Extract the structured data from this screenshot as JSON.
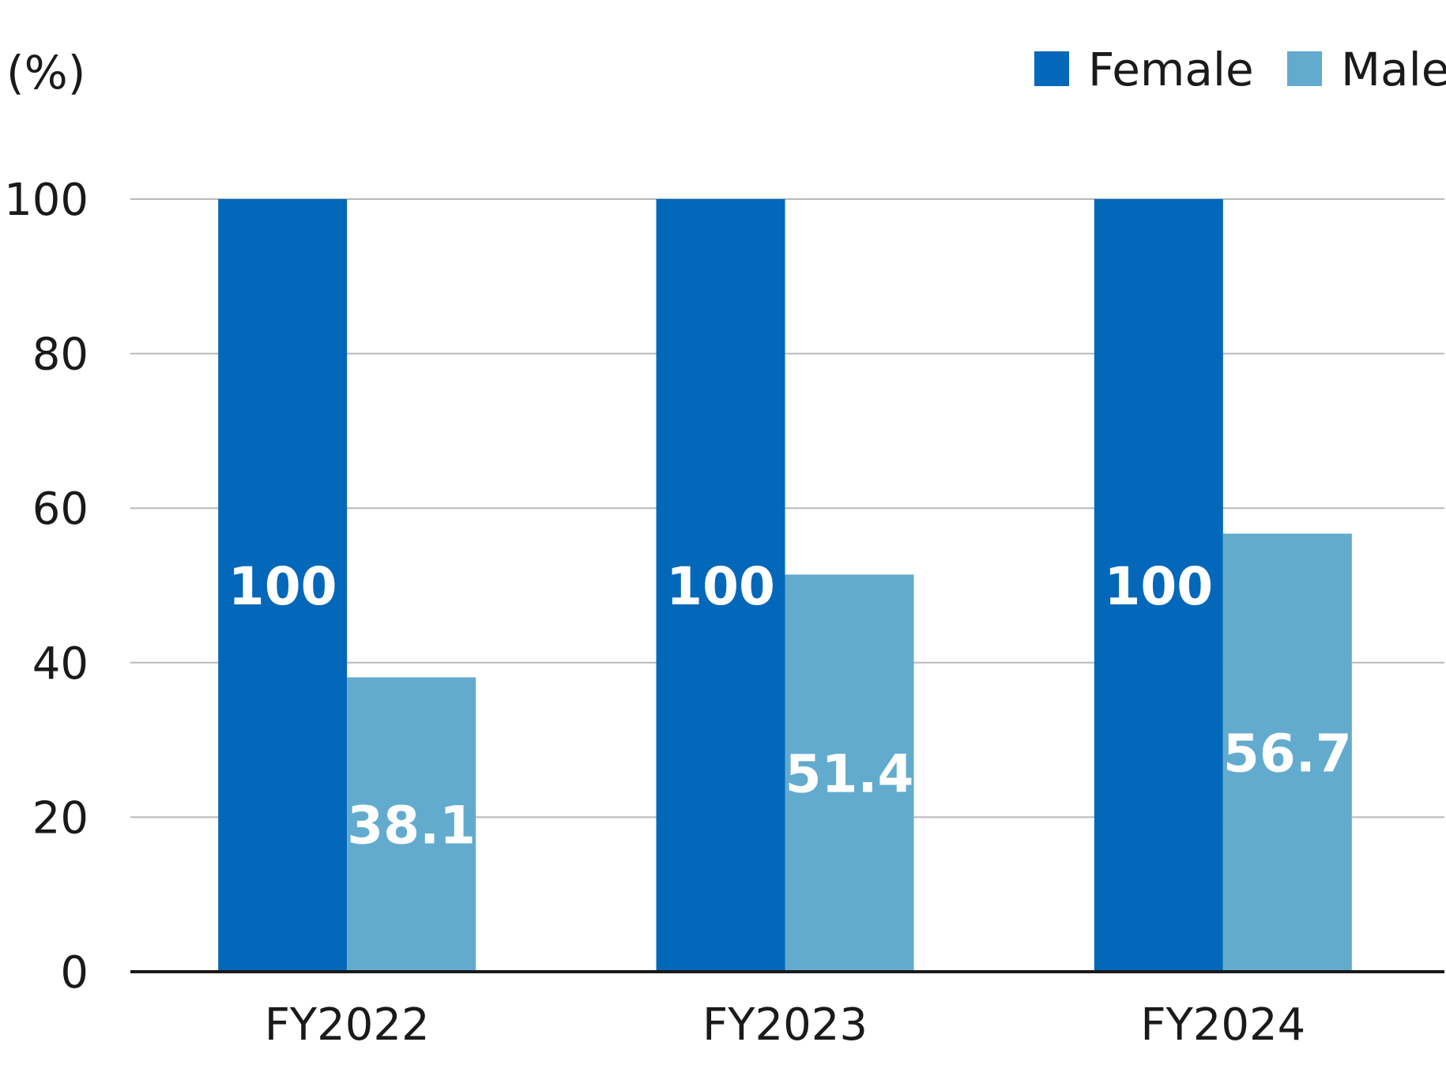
{
  "chart_data": {
    "type": "bar",
    "title": "",
    "xlabel": "",
    "ylabel": "",
    "unit_label": "(%)",
    "categories": [
      "FY2022",
      "FY2023",
      "FY2024"
    ],
    "series": [
      {
        "name": "Female",
        "color": "#0468BA",
        "values": [
          100,
          100,
          100
        ],
        "value_labels": [
          "100",
          "100",
          "100"
        ]
      },
      {
        "name": "Male",
        "color": "#62ABCE",
        "values": [
          38.1,
          51.4,
          56.7
        ],
        "value_labels": [
          "38.1",
          "51.4",
          "56.7"
        ]
      }
    ],
    "ylim": [
      0,
      100
    ],
    "yticks": [
      "0",
      "20",
      "40",
      "60",
      "80",
      "100"
    ],
    "grid": true,
    "legend_position": "top-right"
  }
}
